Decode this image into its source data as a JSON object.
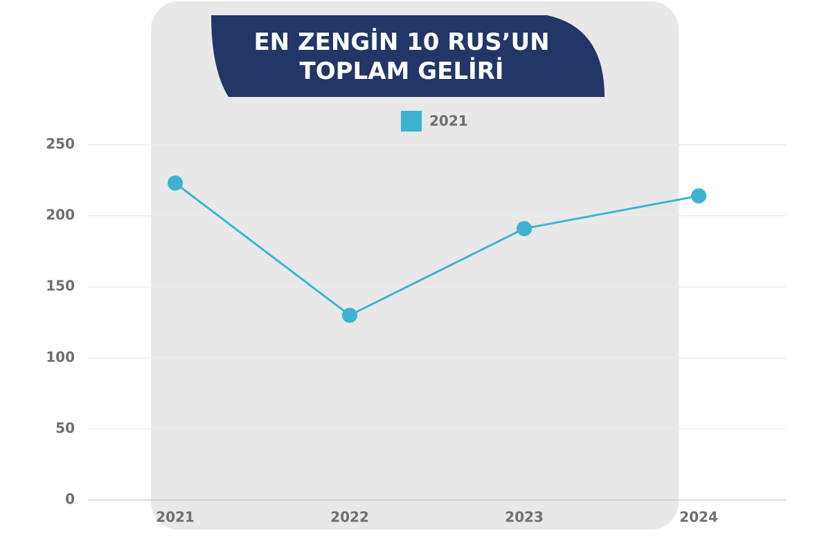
{
  "chart_data": {
    "type": "line",
    "title": "EN ZENGİN 10 RUS’UN TOPLAM GELİRİ",
    "categories": [
      "2021",
      "2022",
      "2023",
      "2024"
    ],
    "series": [
      {
        "name": "2021",
        "color": "#3db3cf",
        "values": [
          223,
          130,
          191,
          214
        ]
      }
    ],
    "ylim": [
      0,
      250
    ],
    "yticks": [
      0,
      50,
      100,
      150,
      200,
      250
    ],
    "grid": true,
    "legend": "top"
  }
}
